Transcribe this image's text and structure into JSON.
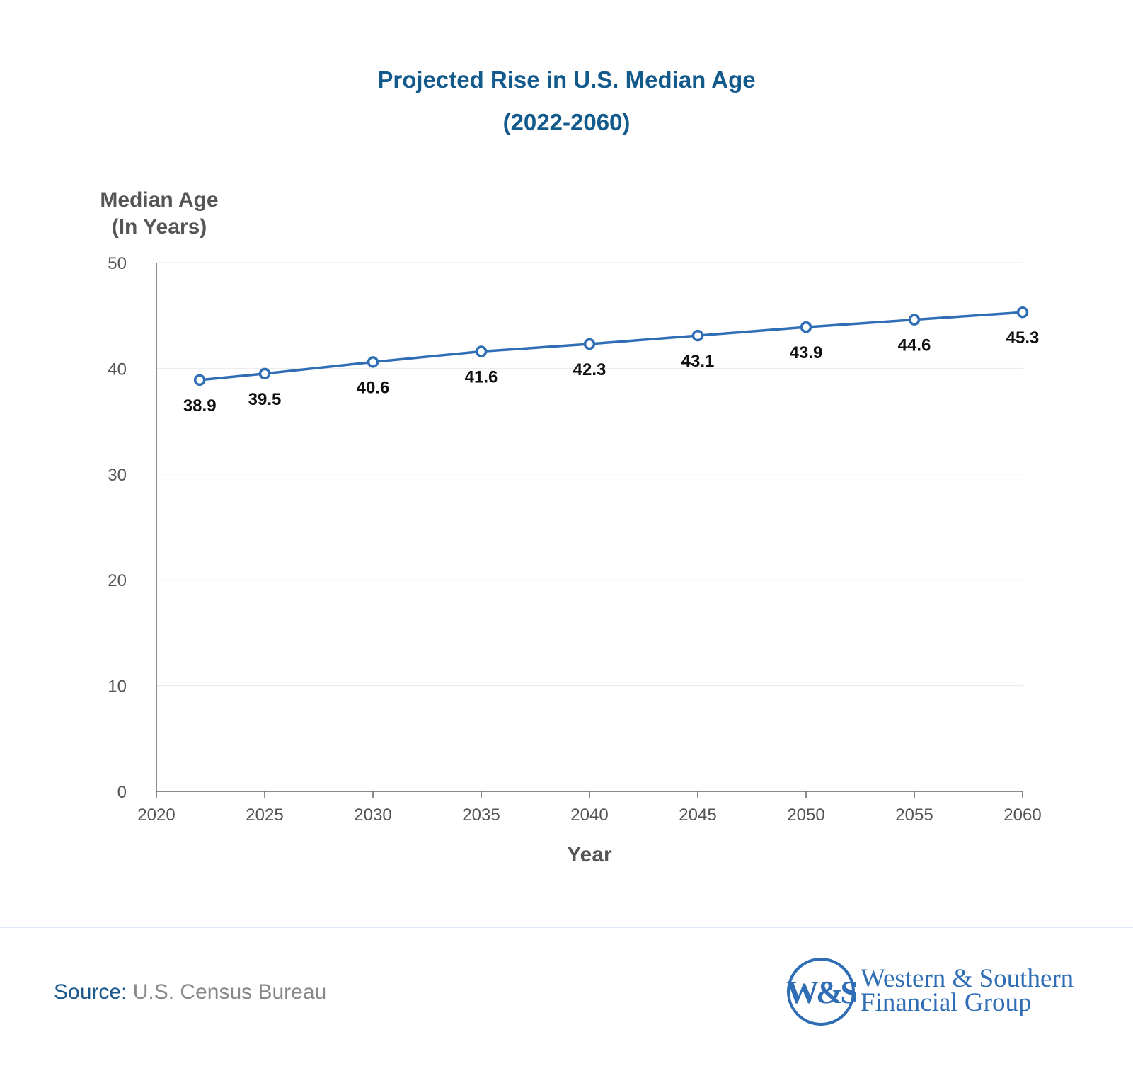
{
  "chart_data": {
    "type": "line",
    "title": "Projected Rise in U.S. Median Age",
    "subtitle": "(2022-2060)",
    "ylabel_line1": "Median Age",
    "ylabel_line2": "(In Years)",
    "xlabel": "Year",
    "xlim": [
      2020,
      2060
    ],
    "ylim": [
      0,
      50
    ],
    "xticks": [
      2020,
      2025,
      2030,
      2035,
      2040,
      2045,
      2050,
      2055,
      2060
    ],
    "yticks": [
      0,
      10,
      20,
      30,
      40,
      50
    ],
    "grid": "horizontal",
    "x": [
      2022,
      2025,
      2030,
      2035,
      2040,
      2045,
      2050,
      2055,
      2060
    ],
    "values": [
      38.9,
      39.5,
      40.6,
      41.6,
      42.3,
      43.1,
      43.9,
      44.6,
      45.3
    ],
    "labels": [
      "38.9",
      "39.5",
      "40.6",
      "41.6",
      "42.3",
      "43.1",
      "43.9",
      "44.6",
      "45.3"
    ],
    "line_color": "#2f6db5"
  },
  "footer": {
    "source_label": "Source:",
    "source_value": "U.S. Census Bureau",
    "logo_mark": "W&S",
    "logo_line1": "Western & Southern",
    "logo_line2": "Financial Group",
    "brand_color": "#2f6db5"
  }
}
